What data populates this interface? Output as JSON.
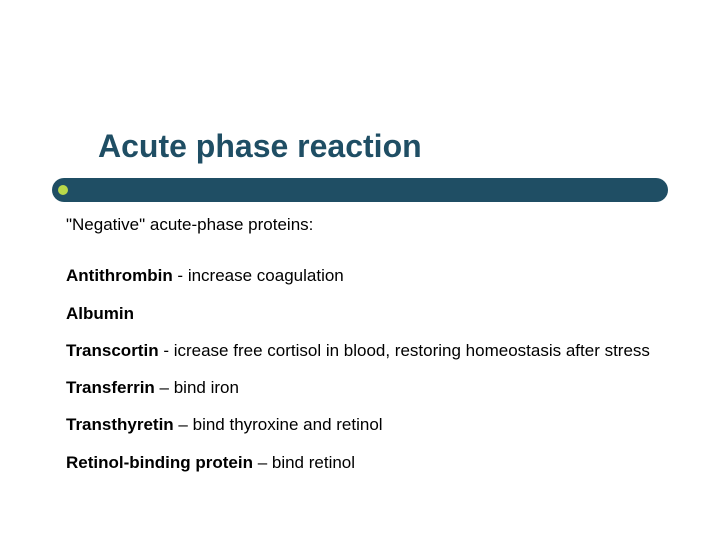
{
  "colors": {
    "title": "#1f4e64",
    "rule": "#1f4e64",
    "bullet": "#b8d84a",
    "text": "#000000",
    "background": "#ffffff"
  },
  "title": "Acute phase reaction",
  "subtitle": "\"Negative\" acute-phase proteins:",
  "items": [
    {
      "term": "Antithrombin",
      "sep": " - ",
      "desc": "increase coagulation"
    },
    {
      "term": "Albumin",
      "sep": "",
      "desc": ""
    },
    {
      "term": "Transcortin",
      "sep": " - ",
      "desc": "icrease free cortisol in blood, restoring homeostasis after stress"
    },
    {
      "term": "Transferrin",
      "sep": " – ",
      "desc": "bind iron"
    },
    {
      "term": "Transthyretin",
      "sep": " – ",
      "desc": "bind thyroxine and retinol"
    },
    {
      "term": "Retinol-binding protein",
      "sep": " – ",
      "desc": "bind retinol"
    }
  ],
  "typography": {
    "title_fontsize": 32,
    "body_fontsize": 17,
    "font_family": "Arial"
  }
}
